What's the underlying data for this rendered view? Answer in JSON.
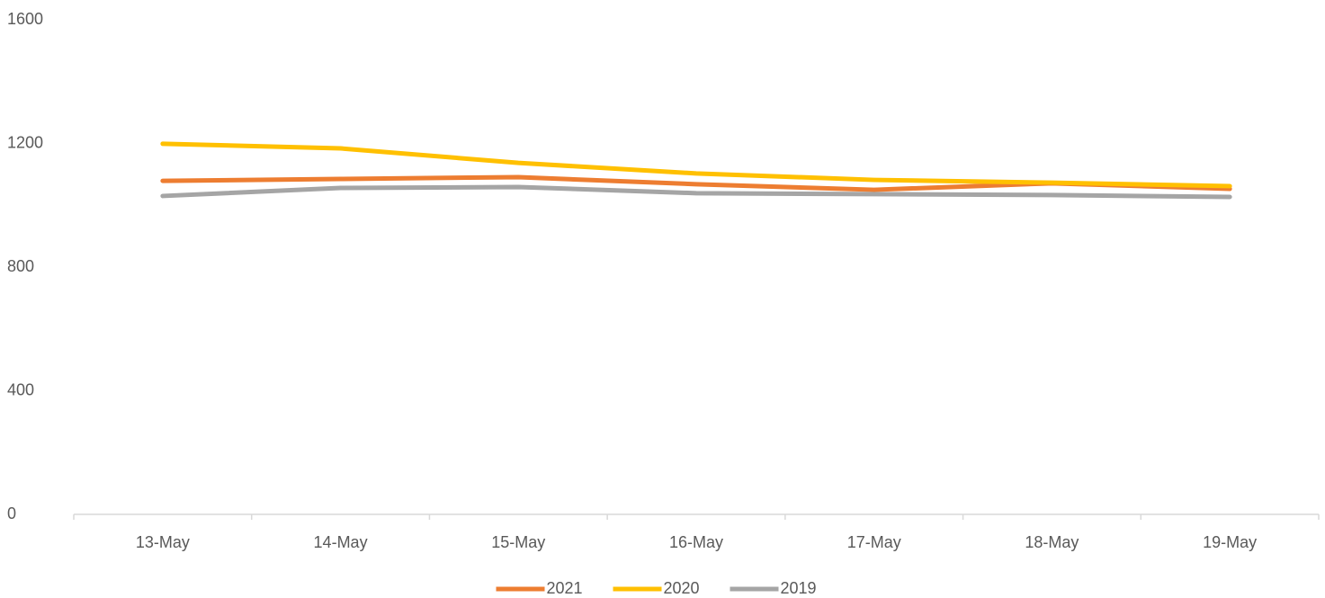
{
  "chart_data": {
    "type": "line",
    "categories": [
      "13-May",
      "14-May",
      "15-May",
      "16-May",
      "17-May",
      "18-May",
      "19-May"
    ],
    "series": [
      {
        "name": "2021",
        "color": "#ED7D31",
        "values": [
          1079,
          1085,
          1091,
          1068,
          1050,
          1071,
          1053
        ]
      },
      {
        "name": "2020",
        "color": "#FFC000",
        "values": [
          1199,
          1184,
          1137,
          1103,
          1082,
          1073,
          1062
        ]
      },
      {
        "name": "2019",
        "color": "#A5A5A5",
        "values": [
          1030,
          1056,
          1059,
          1039,
          1036,
          1033,
          1027
        ]
      }
    ],
    "ylim": [
      0,
      1600
    ],
    "yticks": [
      0,
      400,
      800,
      1200,
      1600
    ],
    "grid": false,
    "legend": "bottom"
  }
}
